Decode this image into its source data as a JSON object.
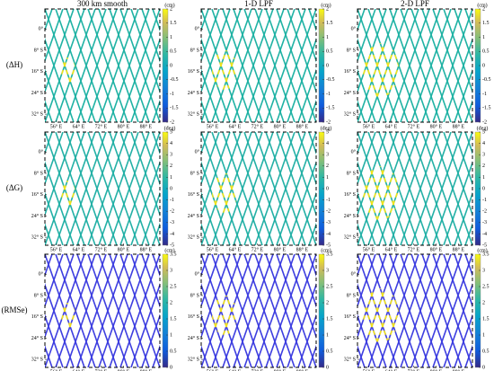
{
  "column_titles": [
    "300 km smooth",
    "1-D LPF",
    "2-D LPF"
  ],
  "rows": [
    {
      "label": "(ΔH)",
      "unit": "(cm)",
      "clim": [
        -2,
        2
      ],
      "cticks": [
        -2,
        -1.5,
        -1,
        -0.5,
        0,
        0.5,
        1,
        1.5,
        2
      ],
      "track_color": "#1fb2a4"
    },
    {
      "label": "(ΔG)",
      "unit": "(deg)",
      "clim": [
        -5,
        5
      ],
      "cticks": [
        -5,
        -4,
        -3,
        -2,
        -1,
        0,
        1,
        2,
        3,
        4,
        5
      ],
      "track_color": "#23b0a6"
    },
    {
      "label": "(RMSe)",
      "unit": "(cm)",
      "clim": [
        0,
        3.5
      ],
      "cticks": [
        0,
        0.5,
        1,
        1.5,
        2,
        2.5,
        3,
        3.5
      ],
      "track_color": "#3d3ee0"
    }
  ],
  "xlim": [
    52,
    93
  ],
  "ylim": [
    -35,
    7.5
  ],
  "lon_ticks": [
    {
      "value": 56,
      "label": "56° E"
    },
    {
      "value": 64,
      "label": "64° E"
    },
    {
      "value": 72,
      "label": "72° E"
    },
    {
      "value": 80,
      "label": "80° E"
    },
    {
      "value": 88,
      "label": "88° E"
    }
  ],
  "lat_ticks": [
    {
      "value": 0,
      "label": "0°"
    },
    {
      "value": -8,
      "label": "8° S"
    },
    {
      "value": -16,
      "label": "16° S"
    },
    {
      "value": -24,
      "label": "24° S"
    },
    {
      "value": -32,
      "label": "32° S"
    }
  ]
}
